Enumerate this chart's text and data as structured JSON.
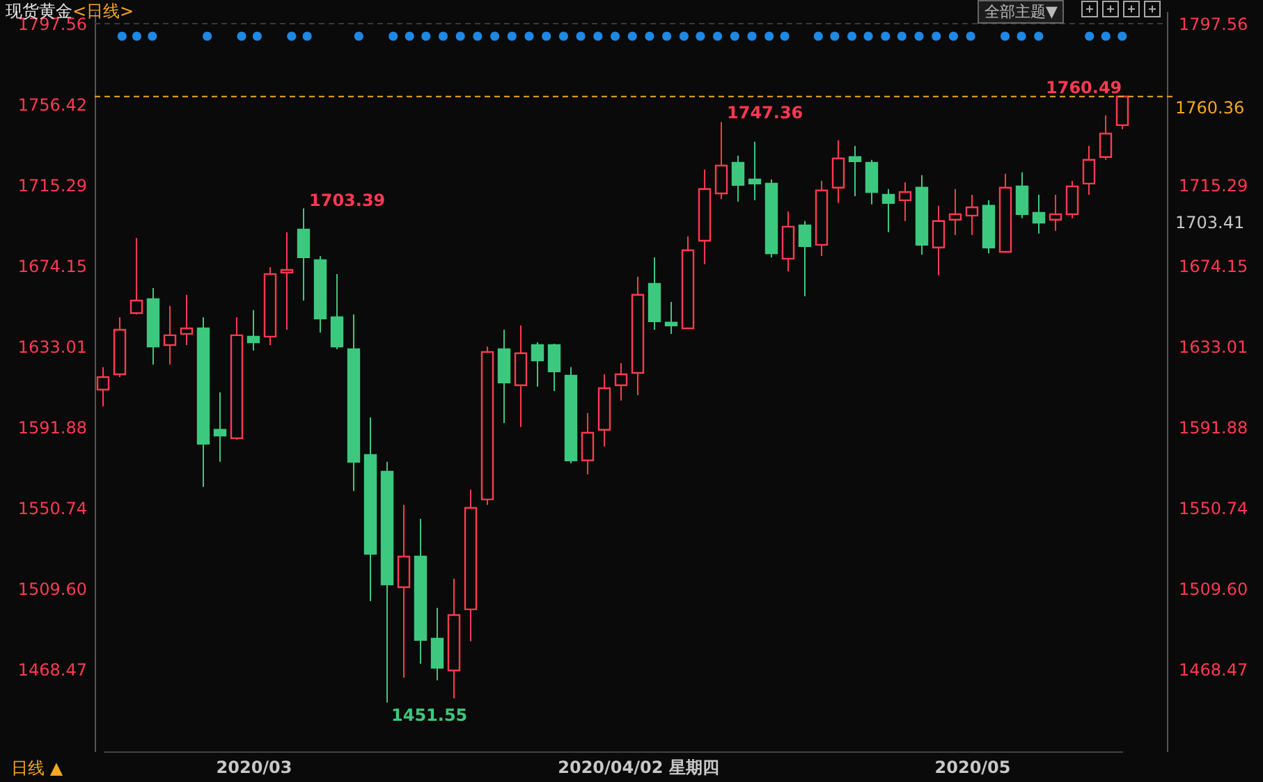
{
  "chart_data": {
    "type": "candlestick",
    "title": "现货黄金",
    "subtitle": "<日线>",
    "categories": [
      null,
      null,
      null,
      null,
      null,
      null,
      null,
      null,
      null,
      "2020/03",
      null,
      null,
      null,
      null,
      null,
      null,
      null,
      null,
      null,
      null,
      null,
      null,
      null,
      null,
      null,
      null,
      null,
      null,
      null,
      null,
      null,
      null,
      "2020/04/02 星期四",
      null,
      null,
      null,
      null,
      null,
      null,
      null,
      null,
      null,
      null,
      null,
      null,
      null,
      null,
      null,
      null,
      null,
      null,
      null,
      "2020/05",
      null,
      null,
      null,
      null,
      null,
      null,
      null,
      null,
      null
    ],
    "ohlc": [
      [
        1611.0,
        1622.4,
        1602.5,
        1617.4
      ],
      [
        1618.8,
        1647.9,
        1617.4,
        1641.5
      ],
      [
        1650.0,
        1688.3,
        1649.3,
        1656.4
      ],
      [
        1657.1,
        1662.8,
        1623.8,
        1633.0
      ],
      [
        1633.7,
        1653.6,
        1623.8,
        1638.7
      ],
      [
        1639.4,
        1659.3,
        1633.7,
        1642.2
      ],
      [
        1642.2,
        1647.9,
        1561.4,
        1583.4
      ],
      [
        1590.5,
        1609.6,
        1574.2,
        1587.6
      ],
      [
        1586.2,
        1647.9,
        1585.5,
        1638.7
      ],
      [
        1638.0,
        1651.5,
        1630.9,
        1635.1
      ],
      [
        1638.0,
        1673.4,
        1633.7,
        1669.9
      ],
      [
        1670.6,
        1691.2,
        1641.5,
        1672.0
      ],
      [
        1692.6,
        1703.39,
        1656.4,
        1678.4
      ],
      [
        1677.0,
        1679.1,
        1640.1,
        1647.2
      ],
      [
        1647.9,
        1669.9,
        1631.6,
        1633.0
      ],
      [
        1631.6,
        1649.3,
        1559.3,
        1574.2
      ],
      [
        1577.7,
        1596.8,
        1503.2,
        1527.3
      ],
      [
        1569.2,
        1574.2,
        1451.55,
        1511.7
      ],
      [
        1510.3,
        1552.2,
        1464.2,
        1525.9
      ],
      [
        1525.9,
        1545.1,
        1471.3,
        1483.4
      ],
      [
        1484.1,
        1499.7,
        1462.8,
        1469.2
      ],
      [
        1467.8,
        1514.6,
        1453.6,
        1496.1
      ],
      [
        1499.0,
        1560.0,
        1482.7,
        1550.7
      ],
      [
        1555.0,
        1633.0,
        1552.2,
        1630.2
      ],
      [
        1631.6,
        1641.5,
        1594.0,
        1614.6
      ],
      [
        1613.2,
        1643.7,
        1591.9,
        1629.5
      ],
      [
        1633.7,
        1635.1,
        1612.5,
        1625.9
      ],
      [
        1633.7,
        1634.4,
        1610.3,
        1620.3
      ],
      [
        1618.1,
        1622.4,
        1573.4,
        1574.9
      ],
      [
        1574.9,
        1599.0,
        1567.8,
        1589.0
      ],
      [
        1590.5,
        1618.8,
        1582.0,
        1611.7
      ],
      [
        1613.2,
        1624.5,
        1605.4,
        1618.8
      ],
      [
        1619.5,
        1668.5,
        1608.2,
        1659.3
      ],
      [
        1664.9,
        1678.4,
        1641.5,
        1645.8
      ],
      [
        1645.1,
        1655.7,
        1639.4,
        1643.7
      ],
      [
        1642.2,
        1689.1,
        1642.2,
        1682.0
      ],
      [
        1686.9,
        1723.1,
        1674.9,
        1713.2
      ],
      [
        1711.0,
        1747.36,
        1708.2,
        1725.2
      ],
      [
        1726.6,
        1730.2,
        1706.8,
        1715.3
      ],
      [
        1718.1,
        1737.3,
        1707.5,
        1716.0
      ],
      [
        1716.0,
        1718.1,
        1678.4,
        1680.5
      ],
      [
        1677.7,
        1701.8,
        1671.3,
        1694.0
      ],
      [
        1694.7,
        1696.9,
        1658.6,
        1684.1
      ],
      [
        1684.8,
        1717.4,
        1679.1,
        1712.5
      ],
      [
        1713.9,
        1738.0,
        1706.1,
        1728.8
      ],
      [
        1729.5,
        1735.2,
        1709.6,
        1727.4
      ],
      [
        1726.6,
        1728.1,
        1705.4,
        1711.7
      ],
      [
        1710.3,
        1713.2,
        1691.2,
        1706.1
      ],
      [
        1707.5,
        1716.7,
        1696.9,
        1711.7
      ],
      [
        1713.9,
        1720.3,
        1679.8,
        1684.8
      ],
      [
        1683.4,
        1704.7,
        1669.2,
        1696.9
      ],
      [
        1697.6,
        1713.2,
        1689.8,
        1700.4
      ],
      [
        1699.7,
        1710.3,
        1689.8,
        1703.9
      ],
      [
        1704.7,
        1707.5,
        1680.5,
        1683.4
      ],
      [
        1681.2,
        1721.0,
        1681.2,
        1713.9
      ],
      [
        1714.6,
        1721.7,
        1698.3,
        1700.4
      ],
      [
        1701.1,
        1710.3,
        1690.5,
        1696.1
      ],
      [
        1697.6,
        1710.3,
        1691.9,
        1700.4
      ],
      [
        1700.4,
        1717.4,
        1698.3,
        1714.6
      ],
      [
        1716.0,
        1735.2,
        1710.3,
        1728.1
      ],
      [
        1729.5,
        1750.8,
        1728.1,
        1741.5
      ],
      [
        1745.8,
        1760.49,
        1743.7,
        1760.36
      ]
    ],
    "colors": [
      "#ff3a52",
      "#ff3a52",
      "#ff3a52",
      "#3cc97f",
      "#ff3a52",
      "#ff3a52",
      "#3cc97f",
      "#3cc97f",
      "#ff3a52",
      "#3cc97f",
      "#ff3a52",
      "#ff3a52",
      "#3cc97f",
      "#3cc97f",
      "#3cc97f",
      "#3cc97f",
      "#3cc97f",
      "#3cc97f",
      "#ff3a52",
      "#3cc97f",
      "#3cc97f",
      "#ff3a52",
      "#ff3a52",
      "#ff3a52",
      "#3cc97f",
      "#ff3a52",
      "#3cc97f",
      "#3cc97f",
      "#3cc97f",
      "#ff3a52",
      "#ff3a52",
      "#ff3a52",
      "#ff3a52",
      "#3cc97f",
      "#3cc97f",
      "#ff3a52",
      "#ff3a52",
      "#ff3a52",
      "#3cc97f",
      "#3cc97f",
      "#3cc97f",
      "#ff3a52",
      "#3cc97f",
      "#ff3a52",
      "#ff3a52",
      "#3cc97f",
      "#3cc97f",
      "#3cc97f",
      "#ff3a52",
      "#3cc97f",
      "#ff3a52",
      "#ff3a52",
      "#ff3a52",
      "#3cc97f",
      "#ff3a52",
      "#3cc97f",
      "#3cc97f",
      "#ff3a52",
      "#ff3a52",
      "#ff3a52",
      "#ff3a52",
      "#ff3a52"
    ],
    "ylim": [
      1426.6,
      1803.9
    ],
    "yticks": [
      1797.56,
      1756.42,
      1715.29,
      1674.15,
      1633.01,
      1591.88,
      1550.74,
      {
        "value": 1509.6,
        "label": "1509.60"
      },
      1468.47
    ],
    "y2lim": [
      1426.6,
      1803.9
    ],
    "y2ticks": [
      1797.56,
      1715.29,
      1674.15,
      1633.01,
      1591.88,
      1550.74,
      {
        "value": 1509.6,
        "label": "1509.60"
      },
      1468.47
    ],
    "ref_lines": [
      {
        "axis": "y2",
        "value": 1760.36,
        "label": "1760.36",
        "color": "#f5a623",
        "line_style": "dashed"
      },
      {
        "axis": "y",
        "value": 1797.56,
        "color": "#3a3a3a",
        "line_style": "dashed"
      }
    ],
    "annotations": [
      "全部主题▼",
      "日线 ▲",
      "1703.39",
      "1451.55",
      "1747.36",
      "1760.49",
      "1703.41"
    ]
  }
}
